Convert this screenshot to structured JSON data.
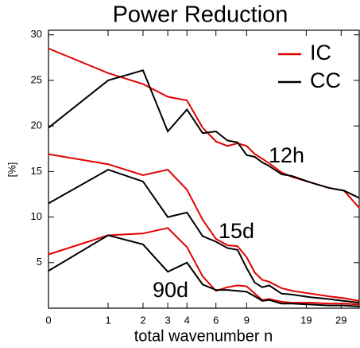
{
  "chart_data": {
    "type": "line",
    "title": "Power Reduction",
    "xlabel": "total wavenumber n",
    "ylabel": "[%]",
    "xscale": "log1p",
    "x": [
      0,
      1,
      2,
      3,
      4,
      5,
      6,
      7,
      8,
      9,
      10,
      11,
      12,
      14,
      16,
      20,
      25,
      30,
      36
    ],
    "xlim": [
      0,
      36
    ],
    "xticks": [
      0,
      1,
      2,
      3,
      4,
      6,
      9,
      19,
      29
    ],
    "ylim": [
      0,
      30.5
    ],
    "yticks": [
      5,
      10,
      15,
      20,
      25,
      30
    ],
    "legend": "upper right",
    "annotations": [
      "12h",
      "15d",
      "90d"
    ],
    "series": [
      {
        "name": "IC",
        "color": "#e00000",
        "values": [
          28.5,
          25.8,
          24.6,
          23.2,
          22.8,
          19.8,
          18.3,
          17.8,
          18.1,
          17.8,
          16.9,
          16.4,
          15.9,
          14.9,
          14.4,
          13.8,
          13.2,
          12.9,
          11.0
        ]
      },
      {
        "name": "CC",
        "color": "#000000",
        "values": [
          19.8,
          25.0,
          26.1,
          19.4,
          21.8,
          19.2,
          19.4,
          18.4,
          18.2,
          16.8,
          16.6,
          16.0,
          15.6,
          14.7,
          14.5,
          13.8,
          13.2,
          12.9,
          12.1
        ]
      },
      {
        "color": "#e00000",
        "values": [
          16.9,
          15.8,
          14.6,
          15.2,
          13.0,
          9.7,
          7.6,
          6.9,
          6.8,
          5.6,
          3.9,
          3.1,
          2.9,
          2.2,
          1.9,
          1.6,
          1.3,
          1.1,
          0.8
        ]
      },
      {
        "color": "#000000",
        "values": [
          11.5,
          15.2,
          13.9,
          10.0,
          10.5,
          7.9,
          7.3,
          6.6,
          6.4,
          4.4,
          2.8,
          2.3,
          2.5,
          1.6,
          1.5,
          1.2,
          1.0,
          0.8,
          0.6
        ]
      },
      {
        "color": "#e00000",
        "values": [
          5.9,
          8.0,
          8.2,
          8.8,
          6.7,
          3.5,
          1.9,
          2.3,
          2.5,
          2.4,
          1.6,
          0.9,
          1.0,
          0.7,
          0.6,
          0.6,
          0.5,
          0.5,
          0.4
        ]
      },
      {
        "color": "#000000",
        "values": [
          4.1,
          8.0,
          7.0,
          4.0,
          5.0,
          2.6,
          2.0,
          2.0,
          1.9,
          1.8,
          1.3,
          0.8,
          0.9,
          0.5,
          0.5,
          0.4,
          0.3,
          0.3,
          0.2
        ]
      }
    ]
  }
}
